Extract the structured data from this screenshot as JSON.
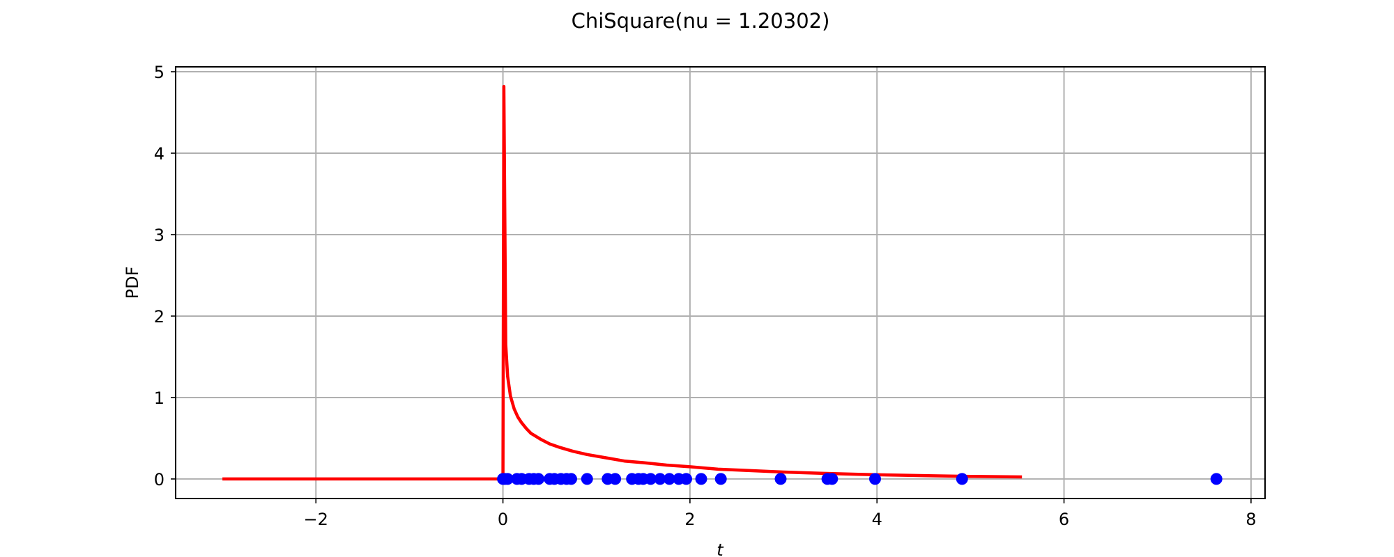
{
  "chart_data": {
    "type": "line",
    "title": "ChiSquare(nu = 1.20302)",
    "xlabel": "t",
    "ylabel": "PDF",
    "xlim": [
      -3.5,
      8.15
    ],
    "ylim": [
      -0.24,
      5.06
    ],
    "xticks": [
      -2,
      0,
      2,
      4,
      6,
      8
    ],
    "xtick_labels": [
      "−2",
      "0",
      "2",
      "4",
      "6",
      "8"
    ],
    "yticks": [
      0,
      1,
      2,
      3,
      4,
      5
    ],
    "ytick_labels": [
      "0",
      "1",
      "2",
      "3",
      "4",
      "5"
    ],
    "grid": true,
    "colors": {
      "pdf_line": "#ff0000",
      "samples": "#0000ff",
      "grid": "#b0b0b0"
    },
    "series": [
      {
        "kind": "line",
        "x": [
          -3.0,
          -0.05,
          0.0,
          0.01,
          0.03,
          0.05,
          0.08,
          0.12,
          0.16,
          0.2,
          0.25,
          0.3,
          0.4,
          0.5,
          0.6,
          0.75,
          0.9,
          1.1,
          1.3,
          1.5,
          1.75,
          2.0,
          2.3,
          2.6,
          3.0,
          3.4,
          3.8,
          4.2,
          4.6,
          5.0,
          5.3,
          5.55
        ],
        "y": [
          0.0,
          0.0,
          0.0,
          4.82,
          1.65,
          1.26,
          1.02,
          0.86,
          0.76,
          0.69,
          0.62,
          0.56,
          0.49,
          0.43,
          0.39,
          0.34,
          0.3,
          0.26,
          0.22,
          0.2,
          0.17,
          0.15,
          0.12,
          0.105,
          0.085,
          0.07,
          0.057,
          0.047,
          0.039,
          0.032,
          0.028,
          0.025
        ]
      },
      {
        "kind": "scatter",
        "x": [
          0.0,
          0.02,
          0.05,
          0.15,
          0.2,
          0.28,
          0.33,
          0.38,
          0.5,
          0.55,
          0.62,
          0.68,
          0.73,
          0.9,
          1.12,
          1.2,
          1.38,
          1.45,
          1.5,
          1.58,
          1.68,
          1.78,
          1.88,
          1.96,
          2.12,
          2.33,
          2.97,
          3.47,
          3.52,
          3.98,
          4.91,
          7.63
        ],
        "y": [
          0,
          0,
          0,
          0,
          0,
          0,
          0,
          0,
          0,
          0,
          0,
          0,
          0,
          0,
          0,
          0,
          0,
          0,
          0,
          0,
          0,
          0,
          0,
          0,
          0,
          0,
          0,
          0,
          0,
          0,
          0,
          0
        ]
      }
    ]
  }
}
